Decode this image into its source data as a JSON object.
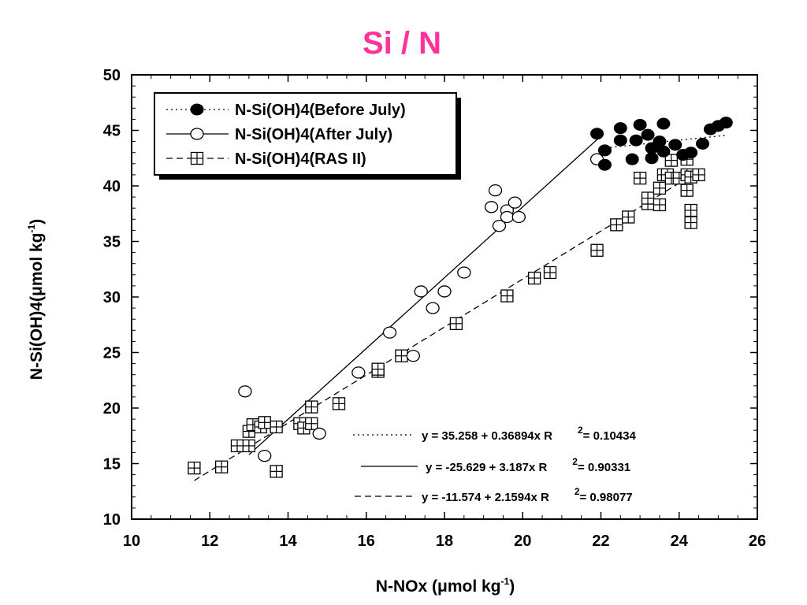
{
  "colors": {
    "title": "#ff3399",
    "ink": "#000000",
    "background": "#ffffff"
  },
  "chart_data": {
    "type": "scatter",
    "title": "Si / N",
    "xlabel": {
      "main": "N-NOx (",
      "mu": "μ",
      "unit": "mol kg",
      "sup": "-1",
      "close": ")"
    },
    "ylabel": {
      "main": "N-Si(OH)4(",
      "mu": "μ",
      "unit": "mol kg",
      "sup": "-1",
      "close": ")"
    },
    "xlim": [
      10,
      26
    ],
    "ylim": [
      10,
      50
    ],
    "xticks": [
      10,
      12,
      14,
      16,
      18,
      20,
      22,
      24,
      26
    ],
    "yticks": [
      10,
      15,
      20,
      25,
      30,
      35,
      40,
      45,
      50
    ],
    "legend_position": "top-left",
    "series": [
      {
        "name": "N-Si(OH)4(Before July)",
        "marker": "filled-circle",
        "line": "dotted",
        "fit": {
          "intercept": 35.258,
          "slope": 0.36894,
          "x_range": [
            22.0,
            25.2
          ]
        },
        "points": [
          [
            21.9,
            44.7
          ],
          [
            22.1,
            43.2
          ],
          [
            22.1,
            41.9
          ],
          [
            22.5,
            45.2
          ],
          [
            22.5,
            44.1
          ],
          [
            22.8,
            42.4
          ],
          [
            22.9,
            44.1
          ],
          [
            23.0,
            45.5
          ],
          [
            23.2,
            44.6
          ],
          [
            23.3,
            43.4
          ],
          [
            23.3,
            42.5
          ],
          [
            23.5,
            44.0
          ],
          [
            23.6,
            45.6
          ],
          [
            23.6,
            43.1
          ],
          [
            23.9,
            43.7
          ],
          [
            24.1,
            42.8
          ],
          [
            24.3,
            43.0
          ],
          [
            24.6,
            43.8
          ],
          [
            24.8,
            45.1
          ],
          [
            25.0,
            45.4
          ],
          [
            25.2,
            45.7
          ]
        ]
      },
      {
        "name": "N-Si(OH)4(After July)",
        "marker": "open-circle",
        "line": "solid",
        "fit": {
          "intercept": -25.629,
          "slope": 3.187,
          "x_range": [
            13.0,
            22.0
          ]
        },
        "points": [
          [
            12.9,
            21.5
          ],
          [
            13.4,
            15.7
          ],
          [
            14.8,
            17.7
          ],
          [
            15.8,
            23.2
          ],
          [
            16.6,
            26.8
          ],
          [
            17.2,
            24.7
          ],
          [
            17.4,
            30.5
          ],
          [
            17.7,
            29.0
          ],
          [
            18.0,
            30.5
          ],
          [
            18.5,
            32.2
          ],
          [
            19.2,
            38.1
          ],
          [
            19.3,
            39.6
          ],
          [
            19.4,
            36.4
          ],
          [
            19.6,
            37.8
          ],
          [
            19.6,
            37.2
          ],
          [
            19.8,
            38.5
          ],
          [
            19.9,
            37.2
          ],
          [
            21.9,
            42.4
          ]
        ]
      },
      {
        "name": "N-Si(OH)4(RAS II)",
        "marker": "boxed-cross",
        "line": "dashed",
        "fit": {
          "intercept": -11.574,
          "slope": 2.1594,
          "x_range": [
            11.6,
            24.6
          ]
        },
        "points": [
          [
            11.6,
            14.6
          ],
          [
            12.3,
            14.7
          ],
          [
            12.7,
            16.6
          ],
          [
            13.0,
            16.6
          ],
          [
            13.0,
            17.9
          ],
          [
            13.1,
            18.5
          ],
          [
            13.3,
            18.3
          ],
          [
            13.4,
            18.7
          ],
          [
            13.7,
            18.3
          ],
          [
            13.7,
            14.3
          ],
          [
            14.3,
            18.6
          ],
          [
            14.4,
            18.2
          ],
          [
            14.6,
            18.6
          ],
          [
            14.6,
            20.1
          ],
          [
            15.3,
            20.4
          ],
          [
            16.3,
            23.3
          ],
          [
            16.3,
            23.5
          ],
          [
            16.9,
            24.7
          ],
          [
            18.3,
            27.6
          ],
          [
            19.6,
            30.1
          ],
          [
            20.3,
            31.7
          ],
          [
            20.7,
            32.2
          ],
          [
            21.9,
            34.2
          ],
          [
            22.4,
            36.5
          ],
          [
            22.7,
            37.2
          ],
          [
            23.0,
            40.7
          ],
          [
            23.2,
            38.4
          ],
          [
            23.2,
            38.9
          ],
          [
            23.5,
            38.3
          ],
          [
            23.5,
            39.8
          ],
          [
            23.6,
            41.0
          ],
          [
            23.7,
            41.0
          ],
          [
            23.8,
            40.7
          ],
          [
            23.8,
            42.3
          ],
          [
            24.0,
            40.7
          ],
          [
            24.2,
            42.4
          ],
          [
            24.2,
            41.0
          ],
          [
            24.2,
            39.6
          ],
          [
            24.3,
            37.8
          ],
          [
            24.3,
            40.8
          ],
          [
            24.3,
            36.7
          ],
          [
            24.5,
            41.0
          ]
        ]
      }
    ],
    "equations": [
      {
        "style": "dotted",
        "text": "y = 35.258 + 0.36894x   R",
        "sup": "2",
        "value": "= 0.10434"
      },
      {
        "style": "solid",
        "text": "y = -25.629 + 3.187x   R",
        "sup": "2",
        "value": "= 0.90331"
      },
      {
        "style": "dashed",
        "text": "y = -11.574 + 2.1594x   R",
        "sup": "2",
        "value": "= 0.98077"
      }
    ]
  }
}
